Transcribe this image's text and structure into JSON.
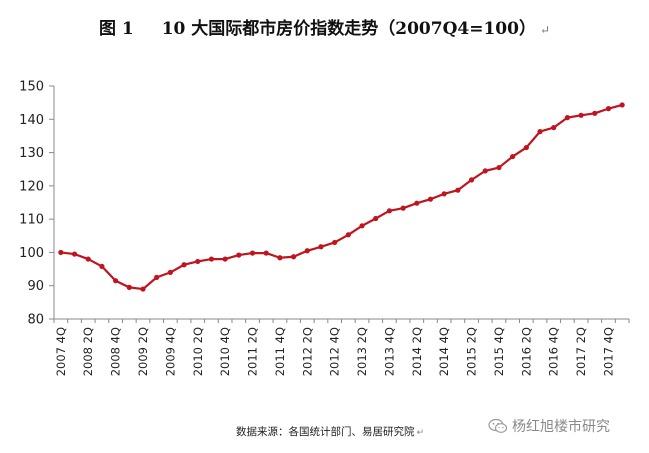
{
  "header": {
    "figure_label": "图 1",
    "title": "10 大国际都市房价指数走势（2007Q4=100）",
    "return_mark": "↵"
  },
  "footer": {
    "source": "数据来源：各国统计部门、易居研究院",
    "return_mark": "↵"
  },
  "watermark": {
    "text": "杨红旭楼市研究",
    "icon": "wechat-icon"
  },
  "colors": {
    "line": "#C0141E",
    "axis": "#8a8a8a"
  },
  "chart_data": {
    "type": "line",
    "title": "10 大国际都市房价指数走势（2007Q4=100）",
    "xlabel": "",
    "ylabel": "",
    "ylim": [
      80,
      150
    ],
    "yticks": [
      80,
      90,
      100,
      110,
      120,
      130,
      140,
      150
    ],
    "grid": false,
    "legend": "none",
    "x": [
      "2007Q4",
      "2008Q1",
      "2008Q2",
      "2008Q3",
      "2008Q4",
      "2009Q1",
      "2009Q2",
      "2009Q3",
      "2009Q4",
      "2010Q1",
      "2010Q2",
      "2010Q3",
      "2010Q4",
      "2011Q1",
      "2011Q2",
      "2011Q3",
      "2011Q4",
      "2012Q1",
      "2012Q2",
      "2012Q3",
      "2012Q4",
      "2013Q1",
      "2013Q2",
      "2013Q3",
      "2013Q4",
      "2014Q1",
      "2014Q2",
      "2014Q3",
      "2014Q4",
      "2015Q1",
      "2015Q2",
      "2015Q3",
      "2015Q4",
      "2016Q1",
      "2016Q2",
      "2016Q3",
      "2016Q4",
      "2017Q1",
      "2017Q2",
      "2017Q3",
      "2017Q4",
      "2018Q1"
    ],
    "xtick_labels": [
      "2007 4Q",
      "2008 2Q",
      "2008 4Q",
      "2009 2Q",
      "2009 4Q",
      "2010 2Q",
      "2010 4Q",
      "2011 2Q",
      "2011 4Q",
      "2012 2Q",
      "2012 4Q",
      "2013 2Q",
      "2013 4Q",
      "2014 2Q",
      "2014 4Q",
      "2015 2Q",
      "2015 4Q",
      "2016 2Q",
      "2016 4Q",
      "2017 2Q",
      "2017 4Q"
    ],
    "series": [
      {
        "values": [
          100,
          99.5,
          98,
          95.8,
          91.5,
          89.5,
          89,
          92.5,
          94,
          96.3,
          97.3,
          98,
          98,
          99.2,
          99.8,
          99.8,
          98.4,
          98.7,
          100.5,
          101.7,
          103,
          105.3,
          108,
          110.2,
          112.5,
          113.3,
          114.8,
          116,
          117.6,
          118.7,
          121.8,
          124.5,
          125.5,
          128.8,
          131.5,
          136.3,
          137.5,
          140.5,
          141.2,
          141.8,
          143.2,
          144.3
        ]
      }
    ]
  }
}
